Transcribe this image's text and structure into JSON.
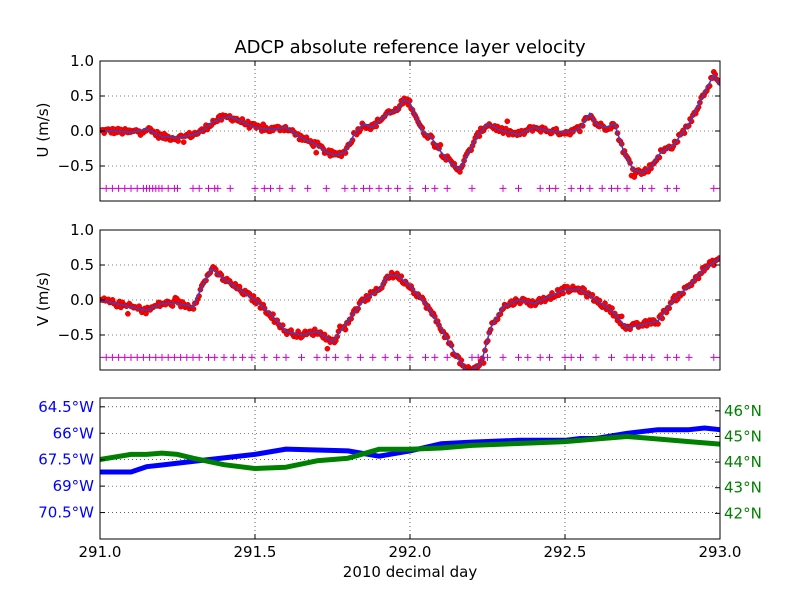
{
  "chart_data": [
    {
      "type": "scatter",
      "title": "ADCP absolute reference layer velocity",
      "ylabel": "U (m/s)",
      "xlim": [
        291.0,
        293.0
      ],
      "ylim": [
        -1.0,
        1.0
      ],
      "yticks": [
        "1.0",
        "0.5",
        "0.0",
        "−0.5"
      ],
      "ytick_values": [
        1.0,
        0.5,
        0.0,
        -0.5
      ],
      "grid": true,
      "colors": {
        "points": "#ff0000",
        "smooth": "#4040c0",
        "flags": "#cc00cc"
      },
      "flag_y": -0.82,
      "x": [
        291.0,
        291.05,
        291.1,
        291.15,
        291.2,
        291.25,
        291.3,
        291.33,
        291.36,
        291.39,
        291.42,
        291.45,
        291.5,
        291.55,
        291.6,
        291.65,
        291.7,
        291.73,
        291.76,
        291.79,
        291.82,
        291.85,
        291.88,
        291.9,
        291.93,
        291.96,
        291.98,
        292.0,
        292.02,
        292.04,
        292.07,
        292.1,
        292.13,
        292.16,
        292.19,
        292.22,
        292.25,
        292.3,
        292.35,
        292.4,
        292.45,
        292.5,
        292.53,
        292.55,
        292.58,
        292.6,
        292.63,
        292.66,
        292.69,
        292.72,
        292.75,
        292.78,
        292.81,
        292.85,
        292.9,
        292.95,
        292.98,
        293.0
      ],
      "y": [
        0.0,
        0.0,
        -0.02,
        0.03,
        -0.08,
        -0.1,
        -0.05,
        0.0,
        0.12,
        0.18,
        0.2,
        0.15,
        0.05,
        0.02,
        0.05,
        -0.1,
        -0.2,
        -0.3,
        -0.35,
        -0.3,
        -0.05,
        0.1,
        0.05,
        0.15,
        0.25,
        0.3,
        0.45,
        0.4,
        0.2,
        0.0,
        -0.1,
        -0.3,
        -0.45,
        -0.55,
        -0.3,
        -0.05,
        0.1,
        0.0,
        -0.05,
        0.05,
        0.0,
        -0.02,
        0.0,
        0.05,
        0.25,
        0.1,
        0.05,
        0.1,
        -0.3,
        -0.55,
        -0.6,
        -0.5,
        -0.3,
        -0.2,
        0.1,
        0.55,
        0.8,
        0.65
      ],
      "flags_x": [
        291.0,
        291.02,
        291.04,
        291.06,
        291.08,
        291.1,
        291.12,
        291.14,
        291.15,
        291.16,
        291.17,
        291.18,
        291.19,
        291.2,
        291.22,
        291.24,
        291.25,
        291.3,
        291.32,
        291.35,
        291.37,
        291.38,
        291.42,
        291.5,
        291.53,
        291.55,
        291.58,
        291.62,
        291.67,
        291.73,
        291.79,
        291.82,
        291.85,
        291.87,
        291.9,
        291.93,
        291.96,
        292.0,
        292.05,
        292.08,
        292.12,
        292.2,
        292.3,
        292.35,
        292.42,
        292.45,
        292.47,
        292.52,
        292.55,
        292.58,
        292.62,
        292.65,
        292.67,
        292.7,
        292.75,
        292.78,
        292.83,
        292.86,
        292.98,
        293.0
      ]
    },
    {
      "type": "scatter",
      "ylabel": "V (m/s)",
      "xlim": [
        291.0,
        293.0
      ],
      "ylim": [
        -1.0,
        1.0
      ],
      "yticks": [
        "1.0",
        "0.5",
        "0.0",
        "−0.5"
      ],
      "ytick_values": [
        1.0,
        0.5,
        0.0,
        -0.5
      ],
      "grid": true,
      "colors": {
        "points": "#ff0000",
        "smooth": "#4040c0",
        "flags": "#cc00cc"
      },
      "flag_y": -0.82,
      "x": [
        291.0,
        291.05,
        291.1,
        291.15,
        291.2,
        291.25,
        291.3,
        291.33,
        291.36,
        291.4,
        291.45,
        291.5,
        291.55,
        291.6,
        291.65,
        291.7,
        291.75,
        291.8,
        291.85,
        291.9,
        291.93,
        291.96,
        292.0,
        292.05,
        292.1,
        292.15,
        292.18,
        292.2,
        292.23,
        292.26,
        292.3,
        292.35,
        292.4,
        292.45,
        292.5,
        292.55,
        292.6,
        292.65,
        292.7,
        292.75,
        292.8,
        292.85,
        292.9,
        292.95,
        293.0
      ],
      "y": [
        0.0,
        -0.05,
        -0.1,
        -0.15,
        -0.05,
        -0.05,
        -0.1,
        0.2,
        0.45,
        0.3,
        0.15,
        0.0,
        -0.2,
        -0.45,
        -0.5,
        -0.45,
        -0.6,
        -0.3,
        0.0,
        0.15,
        0.35,
        0.35,
        0.2,
        -0.05,
        -0.4,
        -0.8,
        -1.0,
        -1.0,
        -0.9,
        -0.4,
        -0.1,
        0.0,
        -0.05,
        0.05,
        0.15,
        0.15,
        0.0,
        -0.15,
        -0.4,
        -0.35,
        -0.3,
        0.0,
        0.2,
        0.45,
        0.6
      ],
      "flags_x": [
        291.0,
        291.02,
        291.04,
        291.06,
        291.08,
        291.1,
        291.12,
        291.14,
        291.16,
        291.18,
        291.2,
        291.22,
        291.24,
        291.26,
        291.28,
        291.3,
        291.32,
        291.35,
        291.37,
        291.4,
        291.43,
        291.46,
        291.49,
        291.53,
        291.57,
        291.6,
        291.65,
        291.7,
        291.73,
        291.76,
        291.8,
        291.84,
        291.88,
        291.92,
        291.96,
        292.0,
        292.05,
        292.08,
        292.12,
        292.2,
        292.22,
        292.25,
        292.3,
        292.35,
        292.38,
        292.42,
        292.45,
        292.5,
        292.52,
        292.55,
        292.6,
        292.65,
        292.7,
        292.72,
        292.75,
        292.78,
        292.83,
        292.86,
        292.9,
        292.98,
        293.0
      ]
    },
    {
      "type": "line",
      "xlabel": "2010 decimal day",
      "xlim": [
        291.0,
        293.0
      ],
      "xticks": [
        "291.0",
        "291.5",
        "292.0",
        "292.5",
        "293.0"
      ],
      "xtick_values": [
        291.0,
        291.5,
        292.0,
        292.5,
        293.0
      ],
      "ylim_left": [
        -72.0,
        -64.0
      ],
      "yticks_left": [
        "64.5°W",
        "66°W",
        "67.5°W",
        "69°W",
        "70.5°W"
      ],
      "ytick_values_left": [
        -64.5,
        -66.0,
        -67.5,
        -69.0,
        -70.5
      ],
      "ylim_right": [
        41.0,
        46.5
      ],
      "yticks_right": [
        "46°N",
        "45°N",
        "44°N",
        "43°N",
        "42°N"
      ],
      "ytick_values_right": [
        46,
        45,
        44,
        43,
        42
      ],
      "grid": true,
      "colors": {
        "left_axis": "#0000ff",
        "right_axis": "#008000"
      },
      "series": [
        {
          "axis": "left",
          "color": "#0000ff",
          "x": [
            291.0,
            291.1,
            291.15,
            291.2,
            291.3,
            291.4,
            291.5,
            291.6,
            291.8,
            291.9,
            292.0,
            292.1,
            292.2,
            292.35,
            292.5,
            292.55,
            292.6,
            292.7,
            292.8,
            292.9,
            292.95,
            293.0
          ],
          "y": [
            -68.2,
            -68.2,
            -67.9,
            -67.8,
            -67.6,
            -67.4,
            -67.2,
            -66.9,
            -67.0,
            -67.3,
            -67.0,
            -66.6,
            -66.5,
            -66.4,
            -66.4,
            -66.3,
            -66.3,
            -66.0,
            -65.8,
            -65.8,
            -65.7,
            -65.8
          ]
        },
        {
          "axis": "right",
          "color": "#008000",
          "x": [
            291.0,
            291.1,
            291.15,
            291.2,
            291.25,
            291.3,
            291.4,
            291.5,
            291.6,
            291.7,
            291.8,
            291.9,
            292.0,
            292.1,
            292.2,
            292.3,
            292.4,
            292.5,
            292.6,
            292.7,
            292.8,
            292.9,
            293.0
          ],
          "y": [
            44.1,
            44.3,
            44.3,
            44.35,
            44.3,
            44.15,
            43.9,
            43.75,
            43.8,
            44.05,
            44.15,
            44.5,
            44.5,
            44.55,
            44.65,
            44.7,
            44.75,
            44.8,
            44.9,
            45.0,
            44.9,
            44.8,
            44.7
          ]
        }
      ]
    }
  ]
}
